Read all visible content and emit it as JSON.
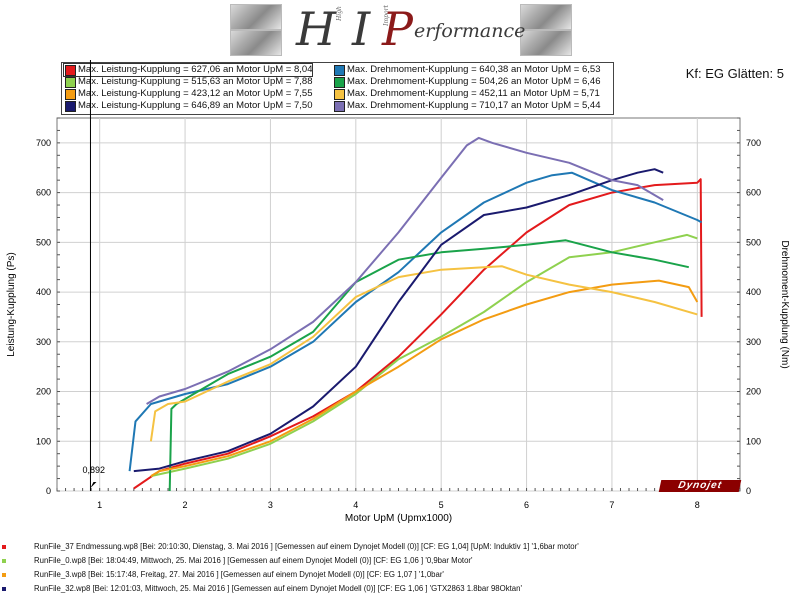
{
  "logo": {
    "name": "H I Performance",
    "h": "H",
    "i": "I",
    "p": "P",
    "rest": "erformance",
    "small1": "High",
    "small2": "Import"
  },
  "filter_label": "Kf: EG Glätten: 5",
  "legend": [
    {
      "label": "Max. Leistung-Kupplung = 627,06 an Motor UpM = 8,04",
      "color": "#e31a1c"
    },
    {
      "label": "Max. Drehmoment-Kupplung = 640,38 an Motor UpM = 6,53",
      "color": "#1f78b4"
    },
    {
      "label": "Max. Leistung-Kupplung = 515,63 an Motor UpM = 7,88",
      "color": "#8fd14f"
    },
    {
      "label": "Max. Drehmoment-Kupplung = 504,26 an Motor UpM = 6,46",
      "color": "#1aa34a"
    },
    {
      "label": "Max. Leistung-Kupplung = 423,12 an Motor UpM = 7,55",
      "color": "#f39c12"
    },
    {
      "label": "Max. Drehmoment-Kupplung = 452,11 an Motor UpM = 5,71",
      "color": "#f5c242"
    },
    {
      "label": "Max. Leistung-Kupplung = 646,89 an Motor UpM = 7,50",
      "color": "#1a1a6e"
    },
    {
      "label": "Max. Drehmoment-Kupplung = 710,17 an Motor UpM = 5,44",
      "color": "#7b6fb3"
    }
  ],
  "marker_label": "0,892",
  "dynojet": "Dynojet",
  "runs": [
    {
      "text": "RunFile_37 Endmessung.wp8 [Bei: 20:10:30, Dienstag, 3. Mai 2016 ] [Gemessen auf einem Dynojet Modell (0)] [CF: EG 1,04] [UpM: Induktiv 1] '1,6bar motor'",
      "color": "#e31a1c"
    },
    {
      "text": "RunFile_0.wp8 [Bei: 18:04:49, Mittwoch, 25. Mai 2016 ] [Gemessen auf einem Dynojet Modell (0)] [CF: EG 1,06 ] '0,9bar Motor'",
      "color": "#8fd14f"
    },
    {
      "text": "RunFile_3.wp8 [Bei: 15:17:48, Freitag, 27. Mai 2016 ] [Gemessen auf einem Dynojet Modell (0)] [CF: EG 1,07 ] '1,0bar'",
      "color": "#f39c12"
    },
    {
      "text": "RunFile_32.wp8 [Bei: 12:01:03, Mittwoch, 25. Mai 2016 ] [Gemessen auf einem Dynojet Modell (0)] [CF: EG 1,06 ] 'GTX2863 1.8bar 98Oktan'",
      "color": "#1a1a6e"
    }
  ],
  "chart_data": {
    "type": "line",
    "xlabel": "Motor UpM (Upmx1000)",
    "ylabel": "Leistung-Kupplung (Ps)",
    "y2label": "Drehmoment-Kupplung (Nm)",
    "xlim": [
      0.5,
      8.5
    ],
    "ylim": [
      0,
      750
    ],
    "y2lim": [
      0,
      750
    ],
    "xticks": [
      1,
      2,
      3,
      4,
      5,
      6,
      7,
      8
    ],
    "yticks": [
      0,
      100,
      200,
      300,
      400,
      500,
      600,
      700
    ],
    "grid": true,
    "series": [
      {
        "color": "#e31a1c",
        "axis": "left",
        "x": [
          1.4,
          1.7,
          2.0,
          2.5,
          3.0,
          3.5,
          4.0,
          4.5,
          5.0,
          5.5,
          6.0,
          6.5,
          7.0,
          7.5,
          8.0,
          8.04,
          8.05
        ],
        "y": [
          5,
          40,
          55,
          75,
          110,
          150,
          200,
          270,
          355,
          445,
          520,
          575,
          600,
          615,
          620,
          627,
          350
        ]
      },
      {
        "color": "#1f78b4",
        "axis": "right",
        "x": [
          1.35,
          1.42,
          1.6,
          2.0,
          2.5,
          3.0,
          3.5,
          4.0,
          4.5,
          5.0,
          5.5,
          6.0,
          6.3,
          6.53,
          7.0,
          7.5,
          8.0,
          8.05
        ],
        "y": [
          40,
          140,
          175,
          195,
          215,
          250,
          300,
          380,
          440,
          520,
          580,
          620,
          635,
          640,
          605,
          580,
          545,
          540
        ]
      },
      {
        "color": "#8fd14f",
        "axis": "left",
        "x": [
          1.6,
          2.0,
          2.5,
          3.0,
          3.5,
          4.0,
          4.5,
          5.0,
          5.5,
          6.0,
          6.5,
          7.0,
          7.5,
          7.88,
          8.0
        ],
        "y": [
          30,
          45,
          65,
          95,
          140,
          195,
          265,
          310,
          360,
          420,
          470,
          480,
          500,
          515,
          508
        ]
      },
      {
        "color": "#1aa34a",
        "axis": "right",
        "x": [
          1.82,
          1.84,
          1.9,
          2.0,
          2.5,
          3.0,
          3.5,
          4.0,
          4.5,
          5.0,
          5.5,
          6.0,
          6.46,
          7.0,
          7.5,
          7.9
        ],
        "y": [
          0,
          165,
          175,
          185,
          235,
          270,
          320,
          420,
          465,
          480,
          487,
          495,
          504,
          480,
          465,
          450
        ]
      },
      {
        "color": "#f39c12",
        "axis": "left",
        "x": [
          1.6,
          1.7,
          2.0,
          2.5,
          3.0,
          3.5,
          4.0,
          4.5,
          5.0,
          5.5,
          6.0,
          6.5,
          7.0,
          7.55,
          7.9,
          8.0
        ],
        "y": [
          30,
          40,
          50,
          70,
          100,
          145,
          200,
          250,
          305,
          345,
          375,
          400,
          415,
          423,
          410,
          380
        ]
      },
      {
        "color": "#f5c242",
        "axis": "right",
        "x": [
          1.6,
          1.65,
          1.8,
          2.0,
          2.5,
          3.0,
          3.5,
          4.0,
          4.5,
          5.0,
          5.5,
          5.71,
          6.0,
          6.5,
          7.0,
          7.5,
          8.0
        ],
        "y": [
          100,
          160,
          175,
          180,
          220,
          255,
          310,
          390,
          430,
          445,
          450,
          452,
          435,
          415,
          400,
          380,
          355
        ]
      },
      {
        "color": "#1a1a6e",
        "axis": "left",
        "x": [
          1.4,
          1.7,
          2.0,
          2.5,
          3.0,
          3.5,
          4.0,
          4.5,
          5.0,
          5.5,
          6.0,
          6.5,
          7.0,
          7.3,
          7.5,
          7.6
        ],
        "y": [
          40,
          45,
          60,
          80,
          115,
          170,
          250,
          380,
          495,
          555,
          570,
          595,
          625,
          640,
          647,
          640
        ]
      },
      {
        "color": "#7b6fb3",
        "axis": "right",
        "x": [
          1.55,
          1.7,
          2.0,
          2.5,
          3.0,
          3.5,
          4.0,
          4.5,
          5.0,
          5.3,
          5.44,
          5.6,
          6.0,
          6.5,
          7.0,
          7.3,
          7.6
        ],
        "y": [
          175,
          190,
          205,
          240,
          285,
          340,
          420,
          520,
          630,
          695,
          710,
          700,
          680,
          660,
          625,
          615,
          585
        ]
      }
    ]
  }
}
